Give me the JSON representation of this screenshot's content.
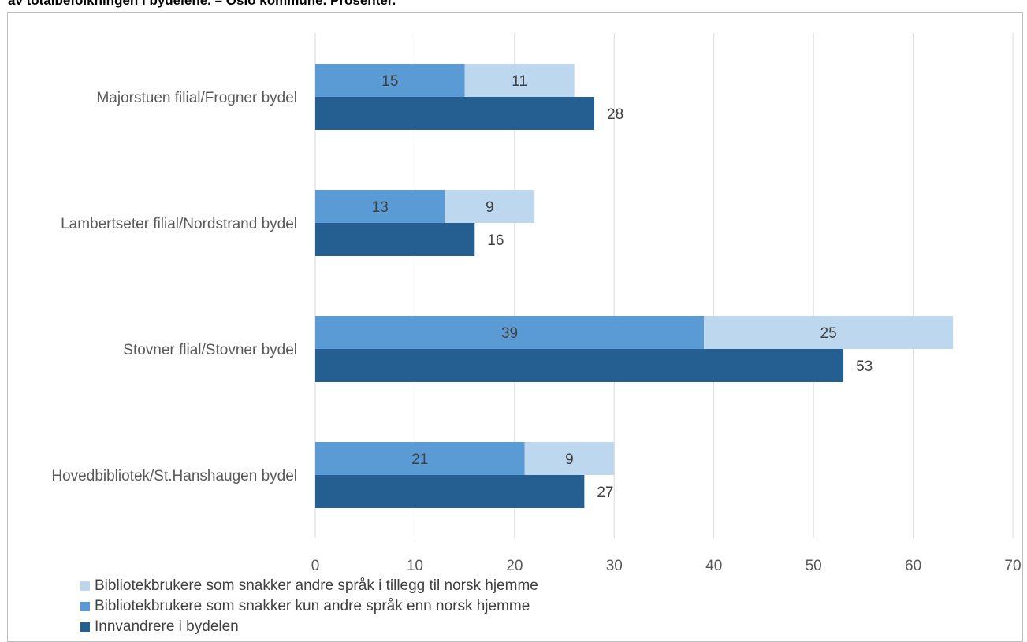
{
  "caption": "av totalbefolkningen i bydelene. – Oslo kommune. Prosenter.",
  "chart_data": {
    "type": "bar",
    "orientation": "horizontal",
    "categories": [
      "Majorstuen filial/Frogner bydel",
      "Lambertseter filial/Nordstrand bydel",
      "Stovner flial/Stovner bydel",
      "Hovedbibliotek/St.Hanshaugen bydel"
    ],
    "series": [
      {
        "name": "Bibliotekbrukere som snakker kun andre språk enn norsk hjemme",
        "color": "#5b9bd5",
        "stack": "A",
        "values": [
          15,
          13,
          39,
          21
        ]
      },
      {
        "name": "Bibliotekbrukere som snakker andre språk i tillegg til norsk hjemme",
        "color": "#bdd7ee",
        "stack": "A",
        "values": [
          11,
          9,
          25,
          9
        ]
      },
      {
        "name": "Innvandrere i bydelen",
        "color": "#255e91",
        "stack": "B",
        "values": [
          28,
          16,
          53,
          27
        ]
      }
    ],
    "xlim": [
      0,
      70
    ],
    "xticks": [
      0,
      10,
      20,
      30,
      40,
      50,
      60,
      70
    ],
    "grid": true,
    "legend_position": "bottom-left",
    "legend_order": [
      "Bibliotekbrukere som snakker andre språk i tillegg til norsk hjemme",
      "Bibliotekbrukere som snakker kun andre språk enn norsk hjemme",
      "Innvandrere i bydelen"
    ]
  }
}
